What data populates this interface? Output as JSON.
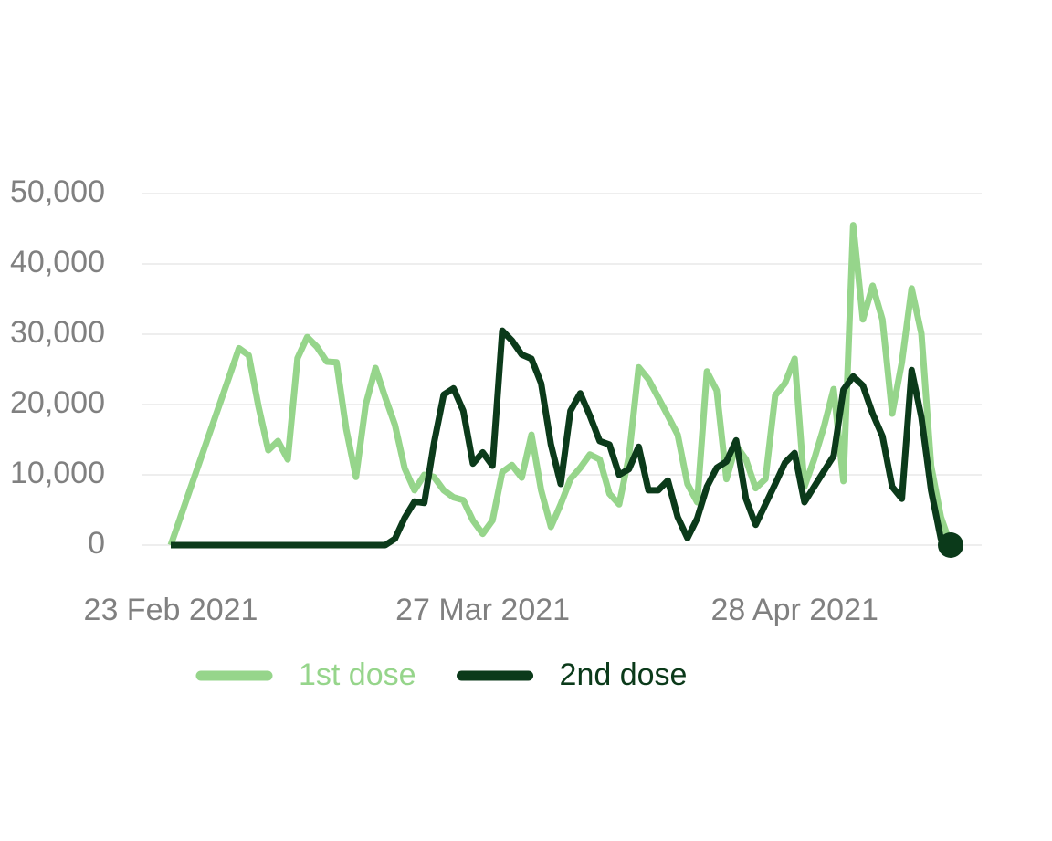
{
  "chart_data": {
    "type": "line",
    "x": [
      "2021-02-23",
      "2021-02-24",
      "2021-02-25",
      "2021-02-26",
      "2021-02-27",
      "2021-02-28",
      "2021-03-01",
      "2021-03-02",
      "2021-03-03",
      "2021-03-04",
      "2021-03-05",
      "2021-03-06",
      "2021-03-07",
      "2021-03-08",
      "2021-03-09",
      "2021-03-10",
      "2021-03-11",
      "2021-03-12",
      "2021-03-13",
      "2021-03-14",
      "2021-03-15",
      "2021-03-16",
      "2021-03-17",
      "2021-03-18",
      "2021-03-19",
      "2021-03-20",
      "2021-03-21",
      "2021-03-22",
      "2021-03-23",
      "2021-03-24",
      "2021-03-25",
      "2021-03-26",
      "2021-03-27",
      "2021-03-28",
      "2021-03-29",
      "2021-03-30",
      "2021-03-31",
      "2021-04-01",
      "2021-04-02",
      "2021-04-03",
      "2021-04-04",
      "2021-04-05",
      "2021-04-06",
      "2021-04-07",
      "2021-04-08",
      "2021-04-09",
      "2021-04-10",
      "2021-04-11",
      "2021-04-12",
      "2021-04-13",
      "2021-04-14",
      "2021-04-15",
      "2021-04-16",
      "2021-04-17",
      "2021-04-18",
      "2021-04-19",
      "2021-04-20",
      "2021-04-21",
      "2021-04-22",
      "2021-04-23",
      "2021-04-24",
      "2021-04-25",
      "2021-04-26",
      "2021-04-27",
      "2021-04-28",
      "2021-04-29",
      "2021-04-30",
      "2021-05-01",
      "2021-05-02",
      "2021-05-03",
      "2021-05-04",
      "2021-05-05",
      "2021-05-06",
      "2021-05-07",
      "2021-05-08",
      "2021-05-09",
      "2021-05-10",
      "2021-05-11",
      "2021-05-12",
      "2021-05-13",
      "2021-05-14"
    ],
    "series": [
      {
        "name": "1st dose",
        "color": "#96d58b",
        "values": [
          0,
          4000,
          8000,
          12000,
          16000,
          20000,
          24000,
          28000,
          27000,
          19700,
          13500,
          14800,
          12200,
          26600,
          29600,
          28200,
          26100,
          26000,
          16500,
          9700,
          20000,
          25200,
          21000,
          17100,
          10900,
          7800,
          10000,
          9700,
          7800,
          6800,
          6400,
          3500,
          1600,
          3500,
          10400,
          11400,
          9600,
          15700,
          7800,
          2600,
          5800,
          9400,
          11000,
          12900,
          12200,
          7300,
          5800,
          12600,
          25300,
          23600,
          21000,
          18400,
          15700,
          8700,
          6100,
          24700,
          22000,
          9400,
          14200,
          12200,
          8100,
          9400,
          21300,
          23000,
          26500,
          8300,
          12200,
          16800,
          22200,
          9100,
          45500,
          32100,
          36900,
          32100,
          18700,
          26000,
          36500,
          30100,
          11300,
          4000,
          0
        ]
      },
      {
        "name": "2nd dose",
        "color": "#0b3a1a",
        "end_marker": true,
        "values": [
          0,
          0,
          0,
          0,
          0,
          0,
          0,
          0,
          0,
          0,
          0,
          0,
          0,
          0,
          0,
          0,
          0,
          0,
          0,
          0,
          0,
          0,
          0,
          900,
          3900,
          6200,
          6000,
          14500,
          21400,
          22300,
          19100,
          11600,
          13200,
          11300,
          30500,
          29100,
          27100,
          26500,
          23000,
          14300,
          8700,
          19100,
          21600,
          18400,
          14800,
          14300,
          10000,
          10800,
          14000,
          7800,
          7800,
          9200,
          4000,
          1000,
          3800,
          8300,
          11000,
          11900,
          14900,
          6600,
          2900,
          5800,
          8700,
          11700,
          13100,
          6100,
          8300,
          10500,
          12700,
          22100,
          24000,
          22700,
          18700,
          15500,
          8300,
          6600,
          24900,
          18200,
          7800,
          900,
          0
        ]
      }
    ],
    "xlim": [
      "2021-02-23",
      "2021-05-14"
    ],
    "xticks": [
      {
        "value": "2021-02-23",
        "label": "23 Feb 2021"
      },
      {
        "value": "2021-03-27",
        "label": "27 Mar 2021"
      },
      {
        "value": "2021-04-28",
        "label": "28 Apr 2021"
      }
    ],
    "ylim": [
      0,
      50000
    ],
    "yticks": [
      0,
      {
        "value": 10000,
        "label": "10,000"
      },
      {
        "value": 20000,
        "label": "20,000"
      },
      {
        "value": 30000,
        "label": "30,000"
      },
      {
        "value": 40000,
        "label": "40,000"
      },
      {
        "value": 50000,
        "label": "50,000"
      }
    ],
    "grid": true,
    "legend": "bottom"
  }
}
